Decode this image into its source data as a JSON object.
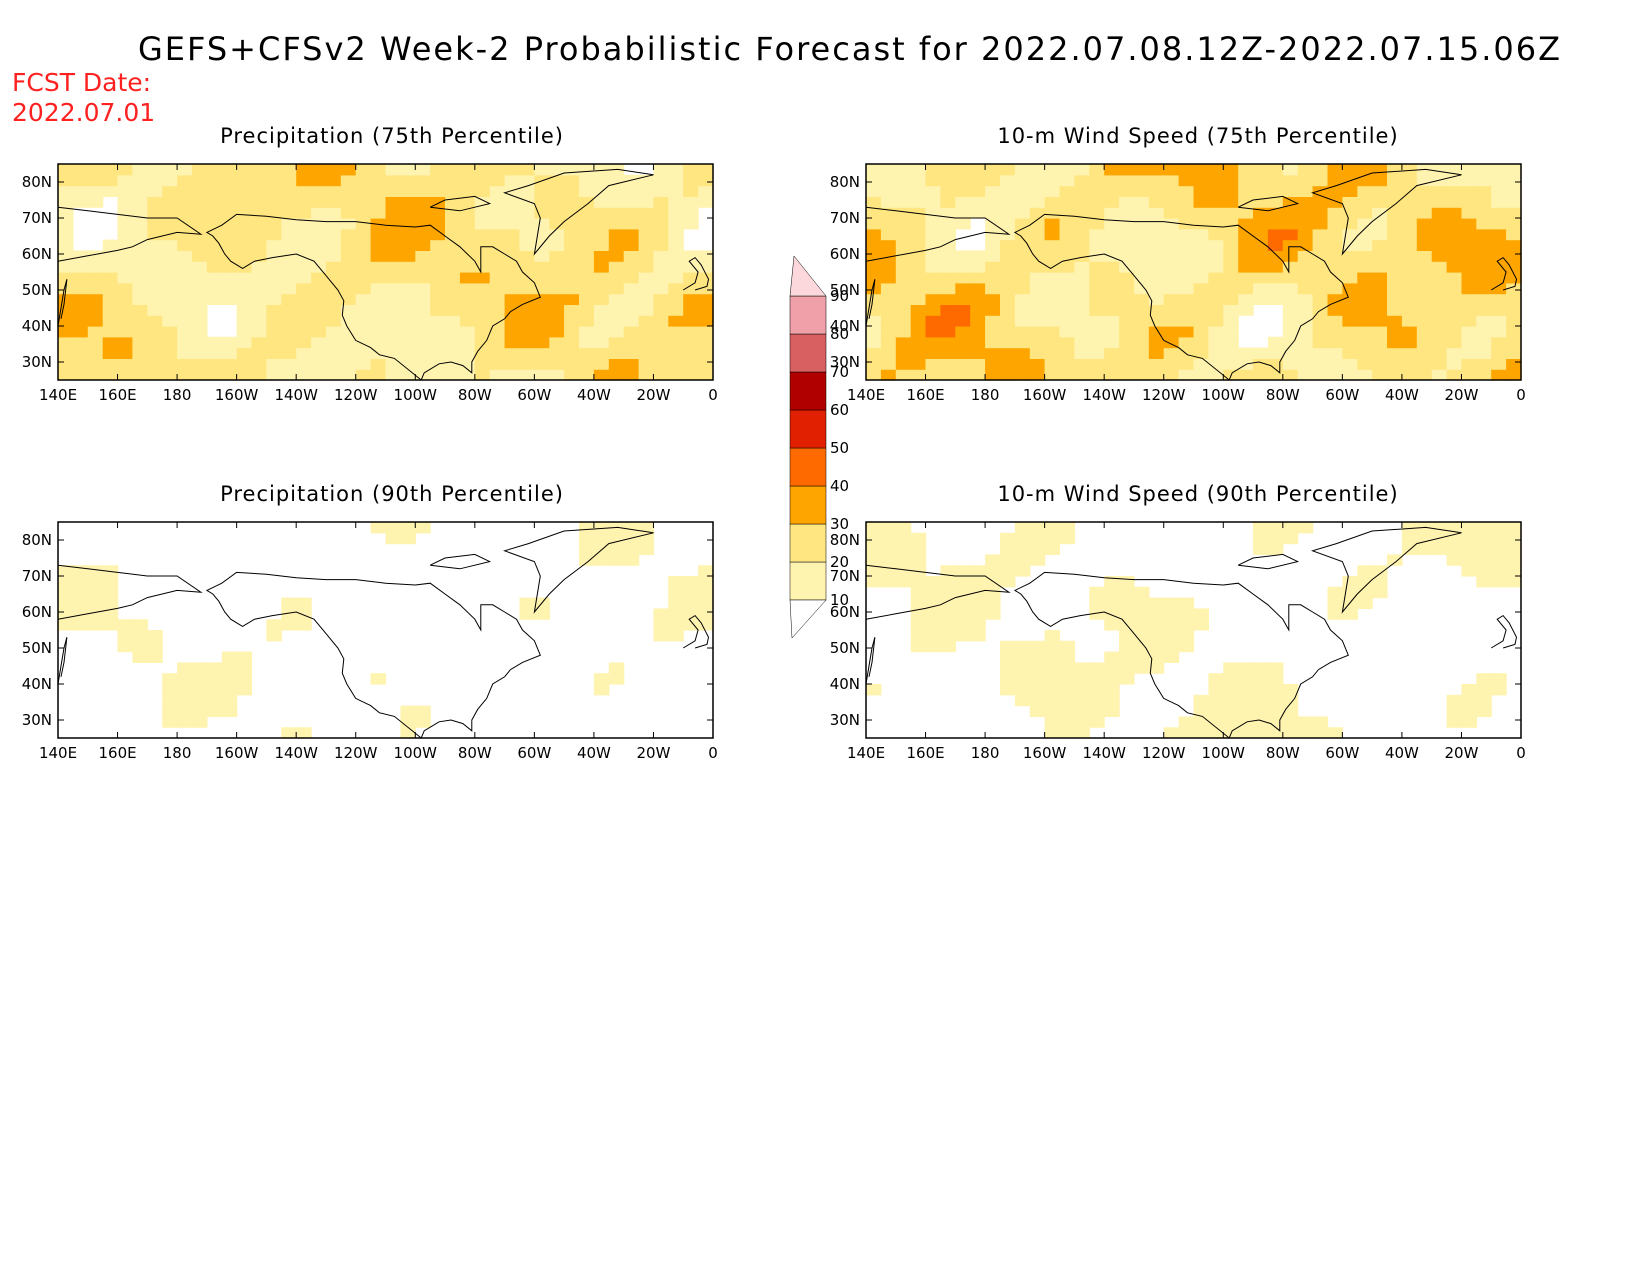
{
  "title": "GEFS+CFSv2 Week-2 Probabilistic Forecast for 2022.07.08.12Z-2022.07.15.06Z",
  "forecast_date_label": "FCST Date:",
  "forecast_date": "2022.07.01",
  "panels": [
    {
      "title": "Precipitation (75th Percentile)",
      "intensity": 1.0
    },
    {
      "title": "10-m Wind Speed (75th Percentile)",
      "intensity": 1.1
    },
    {
      "title": "Precipitation (90th Percentile)",
      "intensity": 0.35
    },
    {
      "title": "10-m Wind Speed (90th Percentile)",
      "intensity": 0.4
    }
  ],
  "axes": {
    "lat_labels": [
      "80N",
      "70N",
      "60N",
      "50N",
      "40N",
      "30N"
    ],
    "lat_values": [
      80,
      70,
      60,
      50,
      40,
      30
    ],
    "lat_range": [
      25,
      85
    ],
    "lon_labels": [
      "140E",
      "160E",
      "180",
      "160W",
      "140W",
      "120W",
      "100W",
      "80W",
      "60W",
      "40W",
      "20W",
      "0"
    ],
    "lon_values": [
      140,
      160,
      180,
      200,
      220,
      240,
      260,
      280,
      300,
      320,
      340,
      360
    ],
    "lon_range": [
      140,
      360
    ]
  },
  "colorbar": {
    "labels": [
      "10",
      "20",
      "30",
      "40",
      "50",
      "60",
      "70",
      "80",
      "90"
    ],
    "colors": [
      "#ffffff",
      "#fff3b0",
      "#ffe680",
      "#ffa500",
      "#ff6a00",
      "#e02000",
      "#b00000",
      "#d86060",
      "#f0a0a8",
      "#fcd8dc"
    ]
  }
}
